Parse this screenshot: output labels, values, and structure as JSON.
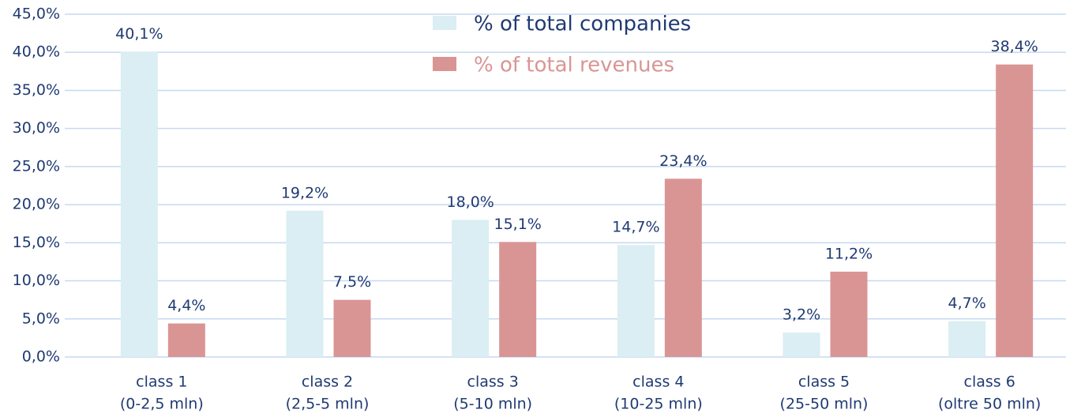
{
  "chart_data": {
    "type": "bar",
    "categories": [
      [
        "class 1",
        "(0-2,5 mln)"
      ],
      [
        "class 2",
        "(2,5-5 mln)"
      ],
      [
        "class 3",
        "(5-10 mln)"
      ],
      [
        "class 4",
        "(10-25 mln)"
      ],
      [
        "class 5",
        "(25-50 mln)"
      ],
      [
        "class 6",
        "(oltre 50 mln)"
      ]
    ],
    "series": [
      {
        "name": "% of total companies",
        "color": "#daeef3",
        "text_color": "#1f3a73",
        "values": [
          40.1,
          19.2,
          18.0,
          14.7,
          3.2,
          4.7
        ],
        "value_labels": [
          "40,1%",
          "19,2%",
          "18,0%",
          "14,7%",
          "3,2%",
          "4,7%"
        ]
      },
      {
        "name": "% of total revenues",
        "color": "#d99594",
        "text_color": "#d99594",
        "values": [
          4.4,
          7.5,
          15.1,
          23.4,
          11.2,
          38.4
        ],
        "value_labels": [
          "4,4%",
          "7,5%",
          "15,1%",
          "23,4%",
          "11,2%",
          "38,4%"
        ]
      }
    ],
    "ylim": [
      0,
      45
    ],
    "yticks": [
      {
        "value": 0,
        "label": "0,0%"
      },
      {
        "value": 5,
        "label": "5,0%"
      },
      {
        "value": 10,
        "label": "10,0%"
      },
      {
        "value": 15,
        "label": "15,0%"
      },
      {
        "value": 20,
        "label": "20,0%"
      },
      {
        "value": 25,
        "label": "25,0%"
      },
      {
        "value": 30,
        "label": "30,0%"
      },
      {
        "value": 35,
        "label": "35,0%"
      },
      {
        "value": 40,
        "label": "40,0%"
      },
      {
        "value": 45,
        "label": "45,0%"
      }
    ],
    "grid": true
  }
}
